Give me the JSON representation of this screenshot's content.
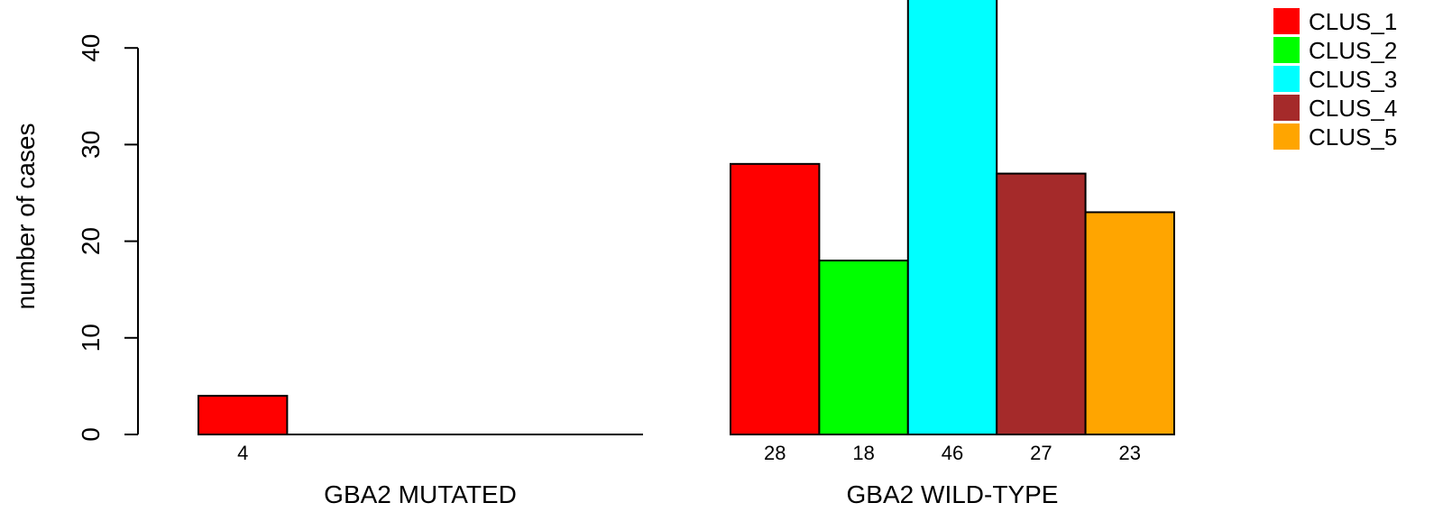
{
  "chart_data": {
    "type": "bar",
    "ylabel": "number of cases",
    "ylim": [
      0,
      46
    ],
    "yticks": [
      0,
      10,
      20,
      30,
      40
    ],
    "groups": [
      {
        "label": "GBA2 MUTATED",
        "values": [
          4,
          0,
          0,
          0,
          0
        ]
      },
      {
        "label": "GBA2 WILD-TYPE",
        "values": [
          28,
          18,
          46,
          27,
          23
        ]
      }
    ],
    "bar_labels": [
      [
        "4",
        "",
        "",
        "",
        ""
      ],
      [
        "28",
        "18",
        "46",
        "27",
        "23"
      ]
    ],
    "series": [
      {
        "name": "CLUS_1",
        "color": "#ff0000"
      },
      {
        "name": "CLUS_2",
        "color": "#00ff00"
      },
      {
        "name": "CLUS_3",
        "color": "#00ffff"
      },
      {
        "name": "CLUS_4",
        "color": "#a52a2a"
      },
      {
        "name": "CLUS_5",
        "color": "#ffa500"
      }
    ],
    "legend_position": "top-right"
  }
}
